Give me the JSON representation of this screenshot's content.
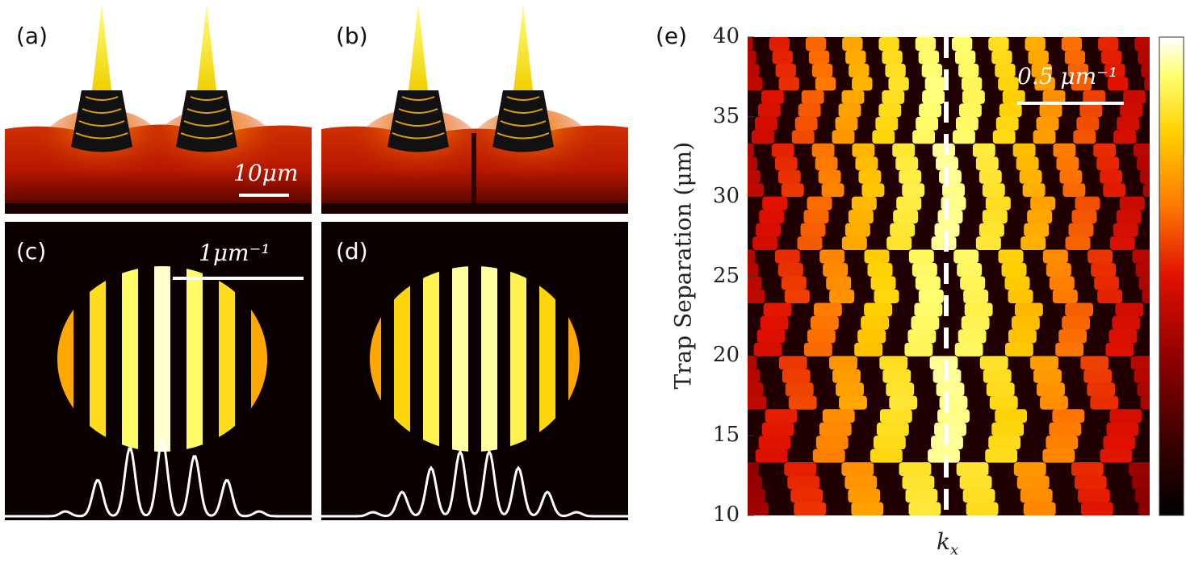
{
  "figure": {
    "panels": {
      "a": {
        "label": "(a)",
        "scale_bar": "10μm"
      },
      "b": {
        "label": "(b)"
      },
      "c": {
        "label": "(c)",
        "scale_bar": "1μm⁻¹"
      },
      "d": {
        "label": "(d)"
      },
      "e": {
        "label": "(e)",
        "scale_bar": "0.5 μm⁻¹"
      }
    }
  },
  "chart_data": {
    "type": "heatmap",
    "xlabel": "kx",
    "ylabel": "Trap Separation (μm)",
    "ylim": [
      10,
      40
    ],
    "yticks": [
      "10",
      "15",
      "20",
      "25",
      "30",
      "35",
      "40"
    ],
    "dashed_line": "kx = 0",
    "colormap": [
      "#000000",
      "#3a0000",
      "#8c0000",
      "#e01000",
      "#ff7a00",
      "#ffd000",
      "#ffff70",
      "#ffffff"
    ],
    "colorbar": true
  }
}
